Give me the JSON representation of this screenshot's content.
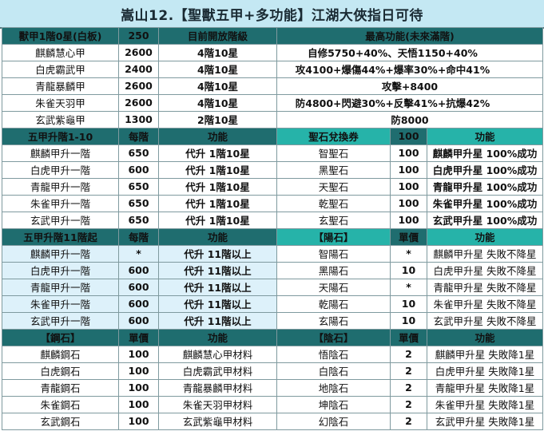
{
  "title": "嵩山12.【聖獸五甲+多功能】江湖大俠指日可待",
  "armor": {
    "header": [
      "獸甲1階0星(白板)",
      "250",
      "目前開放階級",
      "最高功能(未來滿階)"
    ],
    "rows": [
      [
        "麒麟慧心甲",
        "2600",
        "4階10星",
        "自修5750+40%、天悟1150+40%"
      ],
      [
        "白虎霸武甲",
        "2400",
        "4階10星",
        "攻4100+爆傷44%+爆率30%+命中41%"
      ],
      [
        "青龍暴麟甲",
        "2600",
        "4階10星",
        "攻擊+8400"
      ],
      [
        "朱雀天羽甲",
        "2600",
        "4階10星",
        "防4800+閃避30%+反擊41%+抗爆42%"
      ],
      [
        "玄武紫龜甲",
        "1300",
        "2階10星",
        "防8000"
      ]
    ]
  },
  "upgrade1": {
    "header": [
      "五甲升階1-10",
      "每階",
      "功能"
    ],
    "rows": [
      [
        "麒麟甲升一階",
        "650",
        "代升 1階10星"
      ],
      [
        "白虎甲升一階",
        "600",
        "代升 1階10星"
      ],
      [
        "青龍甲升一階",
        "650",
        "代升 1階10星"
      ],
      [
        "朱雀甲升一階",
        "650",
        "代升 1階10星"
      ],
      [
        "玄武甲升一階",
        "650",
        "代升 1階10星"
      ]
    ]
  },
  "upgrade2": {
    "header": [
      "五甲升階11階起",
      "每階",
      "功能"
    ],
    "rows": [
      [
        "麒麟甲升一階",
        "*",
        "代升 11階以上"
      ],
      [
        "白虎甲升一階",
        "600",
        "代升 11階以上"
      ],
      [
        "青龍甲升一階",
        "600",
        "代升 11階以上"
      ],
      [
        "朱雀甲升一階",
        "600",
        "代升 11階以上"
      ],
      [
        "玄武甲升一階",
        "600",
        "代升 11階以上"
      ]
    ]
  },
  "steel": {
    "header": [
      "【鋼石】",
      "單價",
      "功能"
    ],
    "rows": [
      [
        "麒麟鋼石",
        "100",
        "麒麟慧心甲材料"
      ],
      [
        "白虎鋼石",
        "100",
        "白虎霸武甲材料"
      ],
      [
        "青龍鋼石",
        "100",
        "青龍暴麟甲材料"
      ],
      [
        "朱雀鋼石",
        "100",
        "朱雀天羽甲材料"
      ],
      [
        "玄武鋼石",
        "100",
        "玄武紫龜甲材料"
      ]
    ]
  },
  "holy": {
    "header": [
      "聖石兌換券",
      "100",
      "功能"
    ],
    "rows": [
      [
        "智聖石",
        "100",
        "麒麟甲升星 100%成功"
      ],
      [
        "黑聖石",
        "100",
        "白虎甲升星 100%成功"
      ],
      [
        "天聖石",
        "100",
        "青龍甲升星 100%成功"
      ],
      [
        "乾聖石",
        "100",
        "朱雀甲升星 100%成功"
      ],
      [
        "玄聖石",
        "100",
        "玄武甲升星 100%成功"
      ]
    ]
  },
  "yang": {
    "header": [
      "【陽石】",
      "單價",
      "功能"
    ],
    "rows": [
      [
        "智陽石",
        "*",
        "麒麟甲升星 失敗不降星"
      ],
      [
        "黑陽石",
        "10",
        "白虎甲升星 失敗不降星"
      ],
      [
        "天陽石",
        "*",
        "青龍甲升星 失敗不降星"
      ],
      [
        "乾陽石",
        "10",
        "朱雀甲升星 失敗不降星"
      ],
      [
        "玄陽石",
        "10",
        "玄武甲升星 失敗不降星"
      ]
    ]
  },
  "yin": {
    "header": [
      "【陰石】",
      "單價",
      "功能"
    ],
    "rows": [
      [
        "悟陰石",
        "2",
        "麒麟甲升星 失敗降1星"
      ],
      [
        "白陰石",
        "2",
        "白虎甲升星 失敗降1星"
      ],
      [
        "地陰石",
        "2",
        "青龍甲升星 失敗降1星"
      ],
      [
        "坤陰石",
        "2",
        "朱雀甲升星 失敗降1星"
      ],
      [
        "幻陰石",
        "2",
        "玄武甲升星 失敗降1星"
      ]
    ]
  }
}
